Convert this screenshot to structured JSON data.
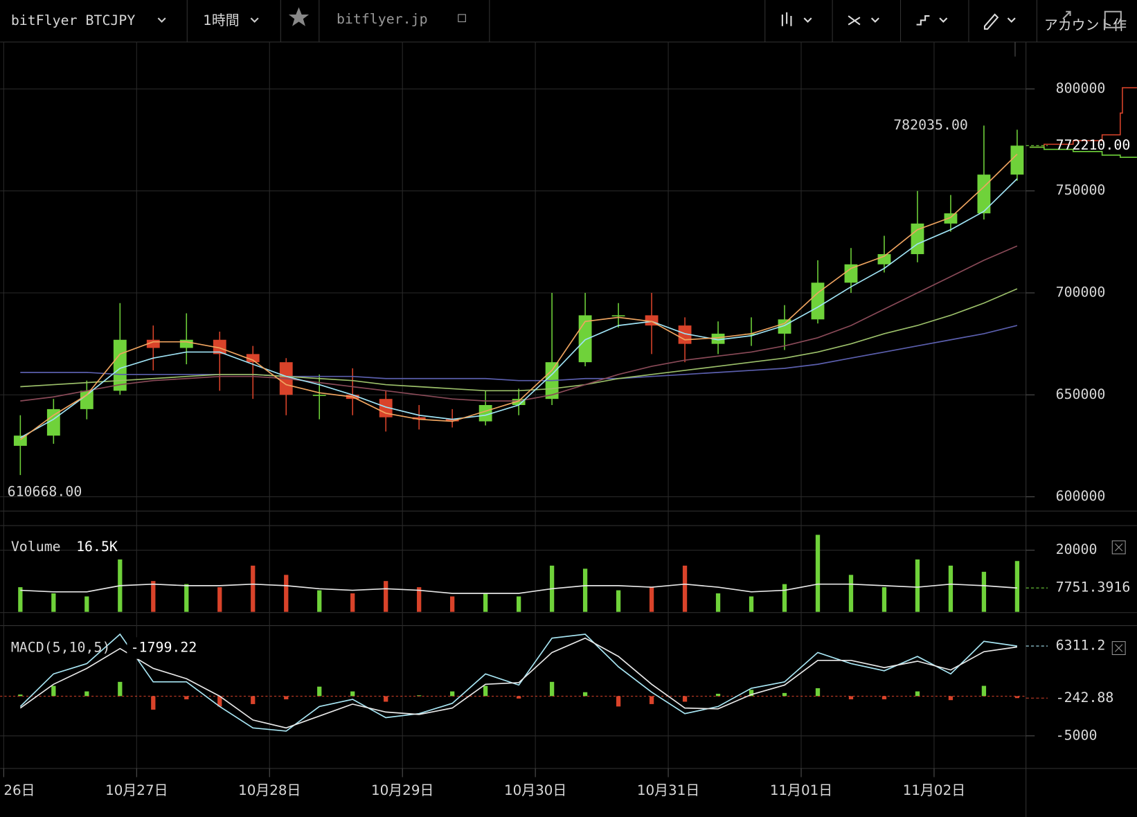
{
  "toolbar": {
    "symbol": "bitFlyer BTCJPY",
    "interval": "1時間",
    "site": "bitflyer.jp",
    "account": "アカウント作"
  },
  "chart_data": [
    {
      "type": "candlestick",
      "categories": [
        "26日",
        null,
        null,
        null,
        "10月27日",
        null,
        null,
        null,
        "10月28日",
        null,
        null,
        null,
        "10月29日",
        null,
        null,
        null,
        "10月30日",
        null,
        null,
        null,
        "10月31日",
        null,
        null,
        null,
        "11月01日",
        null,
        null,
        null,
        "11月02日",
        null,
        null
      ],
      "open": [
        625000,
        630000,
        643000,
        652000,
        677000,
        673000,
        677000,
        670000,
        666000,
        650000,
        650000,
        648000,
        639000,
        638000,
        637000,
        645000,
        648000,
        666000,
        689000,
        689000,
        684000,
        675000,
        680000,
        680000,
        687000,
        705000,
        714000,
        719000,
        734000,
        739000,
        758000
      ],
      "high": [
        640000,
        648000,
        657000,
        695000,
        684000,
        690000,
        681000,
        674000,
        668000,
        660000,
        663000,
        652000,
        645000,
        643000,
        652000,
        653000,
        700000,
        700000,
        695000,
        700000,
        688000,
        686000,
        688000,
        694000,
        716000,
        722000,
        728000,
        750000,
        748000,
        782035,
        780000
      ],
      "low": [
        610668,
        626000,
        638000,
        650000,
        662000,
        665000,
        652000,
        648000,
        640000,
        638000,
        640000,
        632000,
        633000,
        634000,
        635000,
        640000,
        645000,
        664000,
        683000,
        670000,
        666000,
        670000,
        674000,
        672000,
        685000,
        700000,
        710000,
        715000,
        730000,
        736000,
        755000
      ],
      "close": [
        630000,
        643000,
        652000,
        677000,
        673000,
        677000,
        670000,
        666000,
        650000,
        650000,
        648000,
        639000,
        638000,
        637000,
        645000,
        648000,
        666000,
        689000,
        689000,
        684000,
        675000,
        680000,
        680000,
        687000,
        705000,
        714000,
        719000,
        734000,
        739000,
        758000,
        772210
      ],
      "up_color": "#6fd23a",
      "down_color": "#d9432a",
      "series": [
        {
          "color": "#5b5fae",
          "values": [
            661000,
            661000,
            661000,
            660000,
            660000,
            660000,
            660000,
            660000,
            659000,
            659000,
            659000,
            658000,
            658000,
            658000,
            658000,
            657000,
            657000,
            658000,
            658000,
            659000,
            660000,
            661000,
            662000,
            663000,
            665000,
            668000,
            671000,
            674000,
            677000,
            680000,
            684000
          ]
        },
        {
          "color": "#9cc06a",
          "values": [
            654000,
            655000,
            656000,
            657000,
            658000,
            659000,
            660000,
            660000,
            659000,
            658000,
            657000,
            655000,
            654000,
            653000,
            652000,
            652000,
            653000,
            655000,
            658000,
            660000,
            662000,
            664000,
            666000,
            668000,
            671000,
            675000,
            680000,
            684000,
            689000,
            695000,
            702000
          ]
        },
        {
          "color": "#8a4a58",
          "values": [
            647000,
            649000,
            652000,
            655000,
            657000,
            658000,
            659000,
            659000,
            658000,
            656000,
            654000,
            652000,
            650000,
            648000,
            647000,
            647000,
            650000,
            655000,
            660000,
            664000,
            667000,
            669000,
            671000,
            674000,
            678000,
            684000,
            692000,
            700000,
            708000,
            716000,
            723000
          ]
        },
        {
          "color": "#9fe3f5",
          "values": [
            629000,
            638000,
            650000,
            663000,
            668000,
            671000,
            671000,
            665000,
            659000,
            655000,
            650000,
            644000,
            640000,
            638000,
            640000,
            645000,
            660000,
            677000,
            684000,
            686000,
            680000,
            677000,
            679000,
            684000,
            693000,
            703000,
            712000,
            724000,
            731000,
            740000,
            756000
          ]
        },
        {
          "color": "#f0a560",
          "values": [
            628000,
            640000,
            650000,
            670000,
            676000,
            676000,
            673000,
            667000,
            655000,
            651000,
            649000,
            641000,
            638000,
            637000,
            642000,
            647000,
            662000,
            686000,
            688000,
            686000,
            677000,
            678000,
            680000,
            685000,
            700000,
            712000,
            718000,
            731000,
            737000,
            752000,
            768000
          ]
        }
      ],
      "high_label": "782035.00",
      "low_label": "610668.00",
      "last_label": "772210.00",
      "ylim": [
        593000,
        823000
      ],
      "yticks": [
        600000,
        650000,
        700000,
        750000,
        800000
      ],
      "grid": true
    },
    {
      "type": "bar",
      "title": "Volume",
      "value_label": "16.5K",
      "values": [
        8000,
        6000,
        5000,
        17000,
        10000,
        9000,
        8000,
        15000,
        12000,
        7000,
        6000,
        10000,
        8000,
        5000,
        6000,
        5000,
        15000,
        14000,
        7000,
        8000,
        15000,
        6000,
        5000,
        9000,
        25000,
        12000,
        8000,
        17000,
        15000,
        13000,
        16500
      ],
      "ma": {
        "color": "#e6e6e6",
        "values": [
          7000,
          6500,
          6500,
          8500,
          9000,
          8500,
          8500,
          9000,
          8500,
          7500,
          7000,
          7500,
          7000,
          6000,
          6000,
          6000,
          7500,
          8500,
          8500,
          8000,
          9000,
          8000,
          6500,
          7000,
          9000,
          9000,
          8500,
          8000,
          9000,
          8500,
          7751.3916
        ]
      },
      "last_label": "7751.3916",
      "ylim": [
        0,
        28000
      ],
      "yticks": [
        20000
      ]
    },
    {
      "type": "macd",
      "title": "MACD(5,10,5)",
      "readout": "-1799.22",
      "series": [
        {
          "color": "#a8e6f4",
          "values": [
            -1300,
            2800,
            4100,
            7800,
            1800,
            1800,
            -1300,
            -4000,
            -4400,
            -1300,
            -400,
            -2700,
            -2200,
            -900,
            2800,
            1400,
            7300,
            7800,
            3700,
            500,
            -2200,
            -1300,
            1000,
            1800,
            5500,
            4100,
            3200,
            5000,
            2800,
            6900,
            6311.2
          ]
        },
        {
          "color": "#e8e8e8",
          "values": [
            -1500,
            1500,
            3500,
            6000,
            3500,
            2200,
            0,
            -3000,
            -4000,
            -2500,
            -1000,
            -2000,
            -2300,
            -1500,
            1500,
            1700,
            5500,
            7300,
            5000,
            1500,
            -1500,
            -1600,
            200,
            1400,
            4500,
            4500,
            3600,
            4400,
            3300,
            5600,
            6200
          ]
        }
      ],
      "histogram": {
        "up_color": "#6fd23a",
        "down_color": "#d9432a",
        "values": [
          200,
          1300,
          600,
          1800,
          -1700,
          -400,
          -1300,
          -1000,
          -400,
          1200,
          600,
          -700,
          100,
          600,
          1300,
          -300,
          1800,
          500,
          -1300,
          -1000,
          -700,
          300,
          800,
          400,
          1000,
          -400,
          -400,
          600,
          -500,
          1300,
          -242.88
        ]
      },
      "last_labels": [
        "6311.2",
        "-242.88"
      ],
      "ylim": [
        -9100,
        8700
      ],
      "yticks": [
        -5000
      ]
    }
  ]
}
